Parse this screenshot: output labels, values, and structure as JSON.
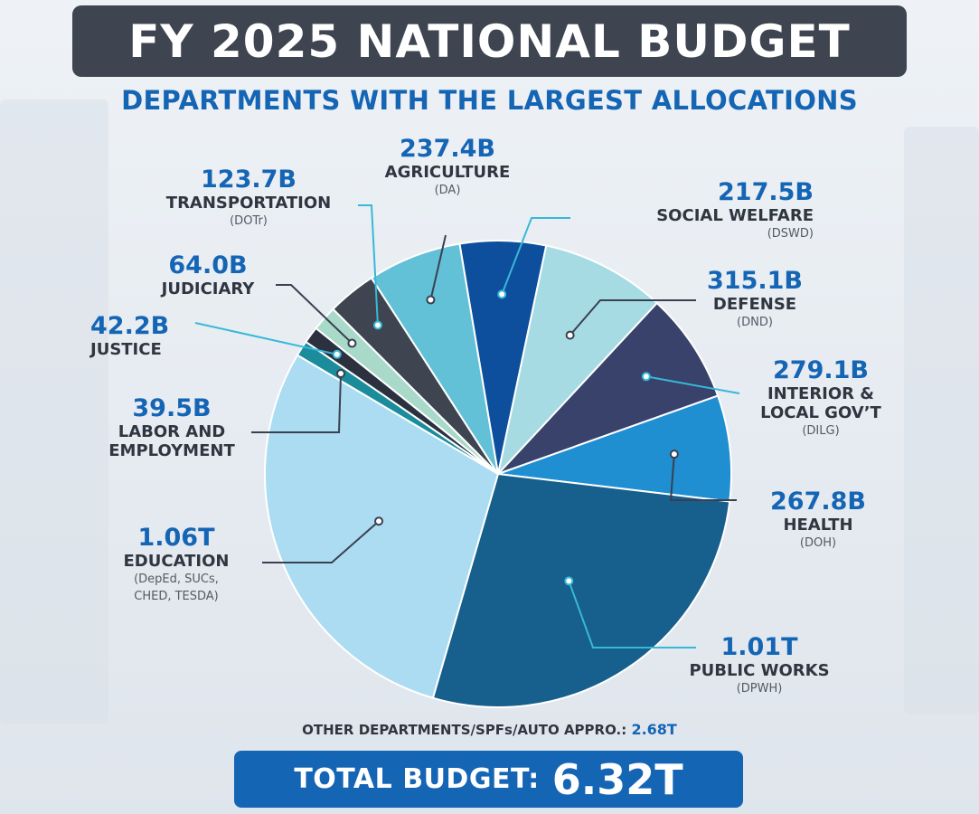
{
  "header": {
    "title": "FY 2025 NATIONAL BUDGET",
    "subtitle": "DEPARTMENTS WITH THE LARGEST ALLOCATIONS"
  },
  "chart_data": {
    "type": "pie",
    "title": "FY 2025 NATIONAL BUDGET",
    "subtitle": "DEPARTMENTS WITH THE LARGEST ALLOCATIONS",
    "unit": "PHP",
    "slices": [
      {
        "value": 217.5,
        "display": "217.5B",
        "name": "SOCIAL WELFARE",
        "abbr": "(DSWD)",
        "color": "#0d4f9c"
      },
      {
        "value": 315.1,
        "display": "315.1B",
        "name": "DEFENSE",
        "abbr": "(DND)",
        "color": "#a6dbe3"
      },
      {
        "value": 279.1,
        "display": "279.1B",
        "name": "INTERIOR & LOCAL GOV’T",
        "name_lines": [
          "INTERIOR &",
          "LOCAL GOV’T"
        ],
        "abbr": "(DILG)",
        "color": "#39426b"
      },
      {
        "value": 267.8,
        "display": "267.8B",
        "name": "HEALTH",
        "abbr": "(DOH)",
        "color": "#1f8fd2"
      },
      {
        "value": 1010,
        "display": "1.01T",
        "name": "PUBLIC WORKS",
        "abbr": "(DPWH)",
        "color": "#175f8c"
      },
      {
        "value": 1060,
        "display": "1.06T",
        "name": "EDUCATION",
        "abbr_lines": [
          "(DepEd, SUCs,",
          "CHED, TESDA)"
        ],
        "color": "#acdcf1"
      },
      {
        "value": 39.5,
        "display": "39.5B",
        "name": "LABOR AND EMPLOYMENT",
        "name_lines": [
          "LABOR AND",
          "EMPLOYMENT"
        ],
        "color": "#1a8c9b"
      },
      {
        "value": 42.2,
        "display": "42.2B",
        "name": "JUSTICE",
        "color": "#2c3140"
      },
      {
        "value": 64.0,
        "display": "64.0B",
        "name": "JUDICIARY",
        "color": "#a9d9c9"
      },
      {
        "value": 123.7,
        "display": "123.7B",
        "name": "TRANSPORTATION",
        "abbr": "(DOTr)",
        "color": "#3e4550"
      },
      {
        "value": 237.4,
        "display": "237.4B",
        "name": "AGRICULTURE",
        "abbr": "(DA)",
        "color": "#62c0d7"
      }
    ],
    "other": {
      "label": "OTHER DEPARTMENTS/SPFs/AUTO APPRO.:",
      "value": 2680,
      "display": "2.68T"
    },
    "total": {
      "label": "TOTAL BUDGET:",
      "value": 6320,
      "display": "6.32T"
    }
  },
  "colors": {
    "title_bar": "#3e4550",
    "accent_blue": "#1565b5",
    "label_text": "#2f3640",
    "leader_line": "#3a4050",
    "leader_line_light": "#38b8d8"
  }
}
